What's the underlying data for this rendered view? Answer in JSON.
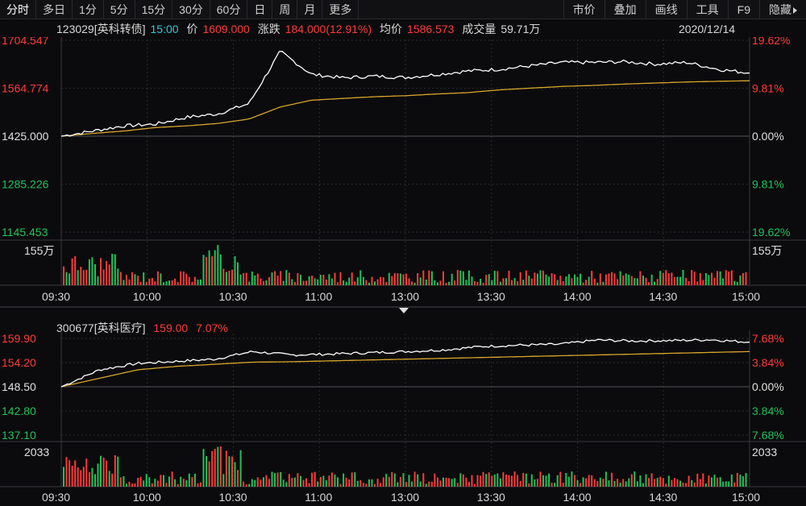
{
  "toolbar": {
    "left": [
      "分时",
      "多日",
      "1分",
      "5分",
      "15分",
      "30分",
      "60分",
      "日",
      "周",
      "月",
      "更多"
    ],
    "right": [
      "市价",
      "叠加",
      "画线",
      "工具",
      "F9",
      "隐藏"
    ]
  },
  "colors": {
    "up": "#ff3b3b",
    "down": "#21c25a",
    "price_line": "#ffffff",
    "avg_line": "#d8a62a",
    "grid": "#2c2c30"
  },
  "top": {
    "code": "123029[英科转债]",
    "time": "15:00",
    "price_label": "价",
    "price": "1609.000",
    "change_label": "涨跌",
    "change": "184.000(12.91%)",
    "avg_label": "均价",
    "avg": "1586.573",
    "volume_label": "成交量",
    "volume": "59.71万",
    "date": "2020/12/14",
    "y_left": [
      "1704.547",
      "1564.774",
      "1425.000",
      "1285.226",
      "1145.453"
    ],
    "y_right": [
      "19.62%",
      "9.81%",
      "0.00%",
      "9.81%",
      "19.62%"
    ],
    "vol_label": "155万",
    "x_labels": [
      "09:30",
      "10:00",
      "10:30",
      "11:00",
      "13:00",
      "13:30",
      "14:00",
      "14:30",
      "15:00"
    ]
  },
  "bottom": {
    "code": "300677[英科医疗]",
    "price": "159.00",
    "change_pct": "7.07%",
    "y_left": [
      "159.90",
      "154.20",
      "148.50",
      "142.80",
      "137.10"
    ],
    "y_right": [
      "7.68%",
      "3.84%",
      "0.00%",
      "3.84%",
      "7.68%"
    ],
    "vol_label": "2033",
    "x_labels": [
      "09:30",
      "10:00",
      "10:30",
      "11:00",
      "13:00",
      "13:30",
      "14:00",
      "14:30",
      "15:00"
    ]
  },
  "chart_data": [
    {
      "type": "line",
      "title": "123029[英科转债]",
      "x": [
        "09:30",
        "09:40",
        "09:50",
        "10:00",
        "10:10",
        "10:15",
        "10:20",
        "10:25",
        "10:30",
        "10:40",
        "10:50",
        "11:00",
        "11:15",
        "11:30",
        "13:00",
        "13:15",
        "13:30",
        "13:45",
        "14:00",
        "14:15",
        "14:30",
        "14:45",
        "15:00"
      ],
      "series": [
        {
          "values": [
            1425,
            1440,
            1455,
            1460,
            1480,
            1490,
            1520,
            1672,
            1605,
            1595,
            1600,
            1596,
            1605,
            1615,
            1620,
            1630,
            1640,
            1640,
            1642,
            1635,
            1640,
            1620,
            1609
          ]
        },
        {
          "values": [
            1425,
            1433,
            1440,
            1450,
            1455,
            1462,
            1475,
            1510,
            1530,
            1535,
            1540,
            1543,
            1548,
            1552,
            1560,
            1565,
            1570,
            1573,
            1577,
            1580,
            1583,
            1585,
            1586.573
          ]
        }
      ],
      "ylim": [
        1145.453,
        1704.547
      ]
    },
    {
      "type": "line",
      "title": "300677[英科医疗]",
      "x": [
        "09:30",
        "09:40",
        "09:50",
        "10:00",
        "10:15",
        "10:30",
        "10:45",
        "11:00",
        "11:15",
        "11:30",
        "13:00",
        "13:15",
        "13:30",
        "13:45",
        "14:00",
        "14:15",
        "14:30",
        "14:45",
        "15:00"
      ],
      "series": [
        {
          "values": [
            148.5,
            152.5,
            154.0,
            154.5,
            155.0,
            156.8,
            156.0,
            156.2,
            156.5,
            156.8,
            157.2,
            158.0,
            158.3,
            158.5,
            159.5,
            159.3,
            159.4,
            159.6,
            159.0
          ]
        },
        {
          "values": [
            148.5,
            150.5,
            152.5,
            153.3,
            153.8,
            154.3,
            154.4,
            154.6,
            154.8,
            155.0,
            155.2,
            155.4,
            155.6,
            155.8,
            156.0,
            156.2,
            156.4,
            156.6,
            156.8
          ]
        }
      ],
      "ylim": [
        137.1,
        159.9
      ]
    }
  ]
}
